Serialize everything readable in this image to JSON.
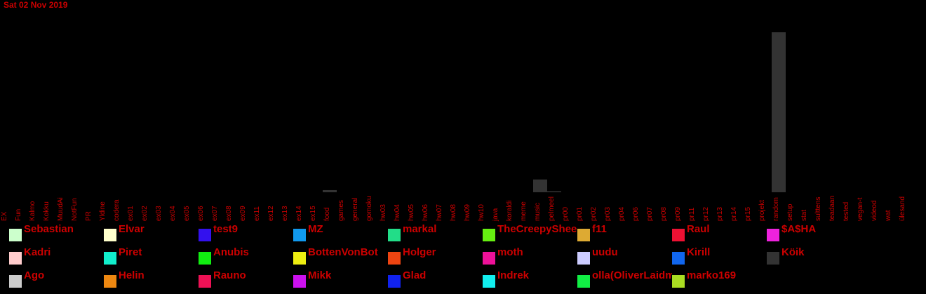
{
  "header": {
    "date": "Sat 02 Nov 2019"
  },
  "chart_data": {
    "type": "bar",
    "categories": [
      "EX",
      "Fun",
      "Kalmo",
      "Kokku",
      "MuudAi",
      "NotFun",
      "PR",
      "Yldine",
      "codera",
      "ex01",
      "ex02",
      "ex03",
      "ex04",
      "ex05",
      "ex06",
      "ex07",
      "ex08",
      "ex09",
      "ex11",
      "ex12",
      "ex13",
      "ex14",
      "ex15",
      "food",
      "games",
      "general",
      "gomoku",
      "hw03",
      "hw04",
      "hw05",
      "hw06",
      "hw07",
      "hw08",
      "hw09",
      "hw10",
      "java",
      "koraldi",
      "meme",
      "music",
      "pelmeel",
      "pr00",
      "pr01",
      "pr02",
      "pr03",
      "pr04",
      "pr06",
      "pr07",
      "pr08",
      "pr09",
      "pr11",
      "pr12",
      "pr13",
      "pr14",
      "pr15",
      "projekt",
      "random",
      "setup",
      "stat",
      "sulttens",
      "teadaan",
      "tested",
      "vegan-t",
      "videod",
      "wat",
      "ülesand"
    ],
    "ylim": [
      0,
      150
    ],
    "grid": false,
    "series": [
      {
        "name": "Köik",
        "color": "#333333",
        "values": [
          0,
          0,
          0,
          0,
          0,
          0,
          0,
          0,
          0,
          0,
          0,
          0,
          0,
          0,
          0,
          0,
          0,
          0,
          0,
          0,
          0,
          0,
          0,
          2,
          0,
          0,
          0,
          0,
          0,
          0,
          0,
          0,
          0,
          0,
          0,
          0,
          0,
          0,
          12,
          1,
          0,
          0,
          0,
          0,
          0,
          0,
          0,
          0,
          0,
          0,
          0,
          0,
          0,
          0,
          0,
          150,
          0,
          0,
          0,
          0,
          0,
          0,
          0,
          0,
          0
        ]
      }
    ],
    "legend": {
      "placement": "bottom",
      "entries": [
        {
          "name": "Sebastian",
          "color": "#ccffcc"
        },
        {
          "name": "Elvar",
          "color": "#ffffcc"
        },
        {
          "name": "test9",
          "color": "#3311ee"
        },
        {
          "name": "MZ",
          "color": "#1199ee"
        },
        {
          "name": "markal",
          "color": "#22dd88"
        },
        {
          "name": "TheCreepySheep",
          "color": "#66ee11"
        },
        {
          "name": "f11",
          "color": "#ddaa33"
        },
        {
          "name": "Raul",
          "color": "#ee1133"
        },
        {
          "name": "$A$HA",
          "color": "#ee22dd"
        },
        {
          "name": "Kadri",
          "color": "#ffcccc"
        },
        {
          "name": "Piret",
          "color": "#11eecc"
        },
        {
          "name": "Anubis",
          "color": "#11ee11"
        },
        {
          "name": "BottenVonBot",
          "color": "#eeee11"
        },
        {
          "name": "Holger",
          "color": "#ee4411"
        },
        {
          "name": "moth",
          "color": "#ee1199"
        },
        {
          "name": "uudu",
          "color": "#ccccff"
        },
        {
          "name": "Kirill",
          "color": "#1166ee"
        },
        {
          "name": "Köik",
          "color": "#333333"
        },
        {
          "name": "Ago",
          "color": "#cccccc"
        },
        {
          "name": "Helin",
          "color": "#ee8811"
        },
        {
          "name": "Rauno",
          "color": "#ee1155"
        },
        {
          "name": "Mikk",
          "color": "#cc11ee"
        },
        {
          "name": "Glad",
          "color": "#1122ee"
        },
        {
          "name": "Indrek",
          "color": "#11eeee"
        },
        {
          "name": "olla(OliverLaidma)",
          "color": "#11ee44"
        },
        {
          "name": "marko169",
          "color": "#aadd22"
        }
      ]
    }
  }
}
